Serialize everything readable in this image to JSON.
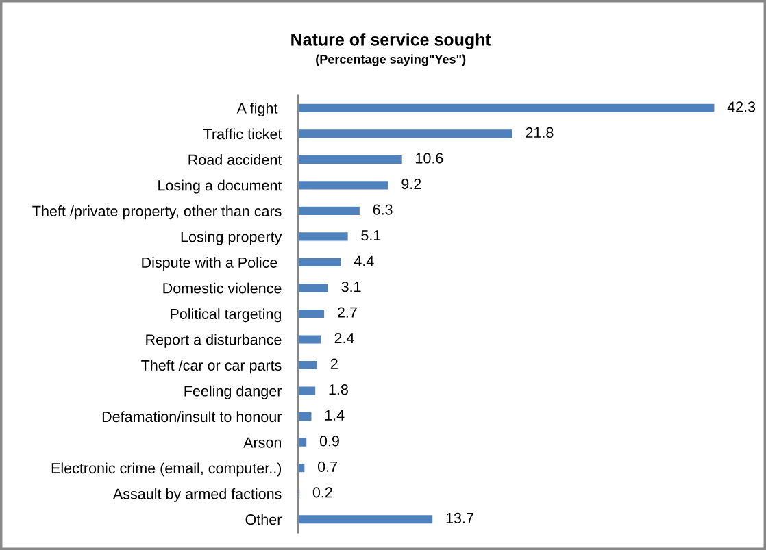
{
  "chart_data": {
    "type": "bar",
    "orientation": "horizontal",
    "title": "Nature of service sought",
    "subtitle": "(Percentage saying\"Yes\")",
    "categories": [
      "A fight ",
      "Traffic ticket",
      "Road accident",
      "Losing a document",
      "Theft /private property, other than cars",
      "Losing property",
      "Dispute with a Police ",
      "Domestic violence",
      "Political targeting",
      "Report a disturbance",
      "Theft /car or car parts",
      "Feeling danger",
      "Defamation/insult to honour",
      "Arson",
      "Electronic crime (email, computer..)",
      "Assault by armed factions",
      "Other"
    ],
    "values": [
      42.3,
      21.8,
      10.6,
      9.2,
      6.3,
      5.1,
      4.4,
      3.1,
      2.7,
      2.4,
      2,
      1.8,
      1.4,
      0.9,
      0.7,
      0.2,
      13.7
    ],
    "color": "#4f81bd",
    "data_labels": true,
    "tick_labels": "y"
  }
}
